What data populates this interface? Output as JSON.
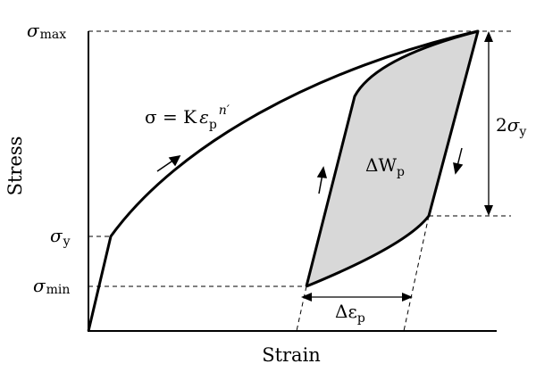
{
  "labels": {
    "sigma": "σ",
    "sigma_max_sub": "max",
    "sigma_y_sub": "y",
    "sigma_min_sub": "min",
    "x_axis": "Strain",
    "y_axis": "Stress",
    "equation_lhs": "σ = K",
    "equation_eps": "ε",
    "equation_p": "p",
    "equation_exp": "n′",
    "range_two": "2",
    "range_sigma": "σ",
    "range_sub": "y",
    "area_delta_w": "ΔW",
    "area_sub": "p",
    "delta_eps": "Δε",
    "delta_eps_sub": "p"
  }
}
